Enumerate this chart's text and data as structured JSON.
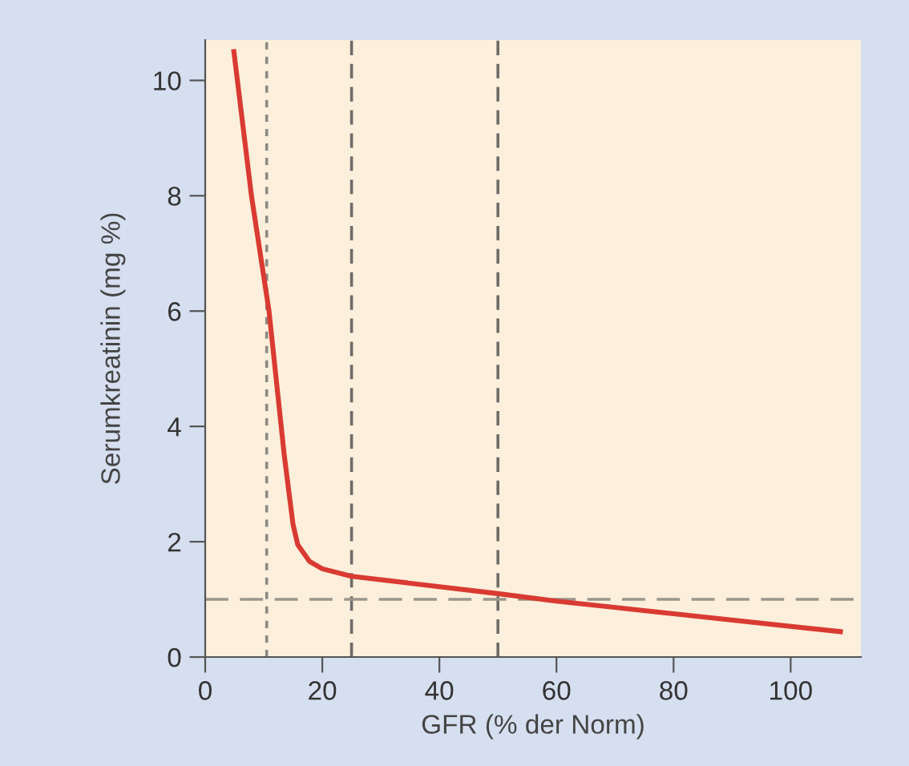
{
  "chart_data": {
    "type": "line",
    "xlabel": "GFR (% der Norm)",
    "ylabel": "Serumkreatinin (mg %)",
    "x": [
      4.9,
      7.9,
      10.9,
      13.5,
      15,
      15.8,
      17.8,
      20,
      25,
      50,
      60,
      80,
      108.5
    ],
    "series": [
      {
        "color": "#d93a32",
        "values": [
          10.5,
          8,
          6,
          3.5,
          2.3,
          1.95,
          1.66,
          1.53,
          1.4,
          1.1,
          0.97,
          0.75,
          0.44
        ]
      }
    ],
    "xlim": [
      0,
      112
    ],
    "ylim": [
      0,
      10.7
    ],
    "xticks": [
      0,
      20,
      40,
      60,
      80,
      100
    ],
    "yticks": [
      0,
      2,
      4,
      6,
      8,
      10
    ],
    "grid": false,
    "marker": "none",
    "line_style": "solid",
    "ref_lines": [
      {
        "axis": "x",
        "value": 10.5,
        "color": "#8c8a84",
        "line_style": "dotted"
      },
      {
        "axis": "x",
        "value": 25,
        "color": "#6e6c68",
        "line_style": "dashed"
      },
      {
        "axis": "x",
        "value": 50,
        "color": "#6e6c68",
        "line_style": "dashed"
      },
      {
        "axis": "y",
        "value": 1,
        "color": "#9a968c",
        "line_style": "dashed"
      }
    ]
  }
}
